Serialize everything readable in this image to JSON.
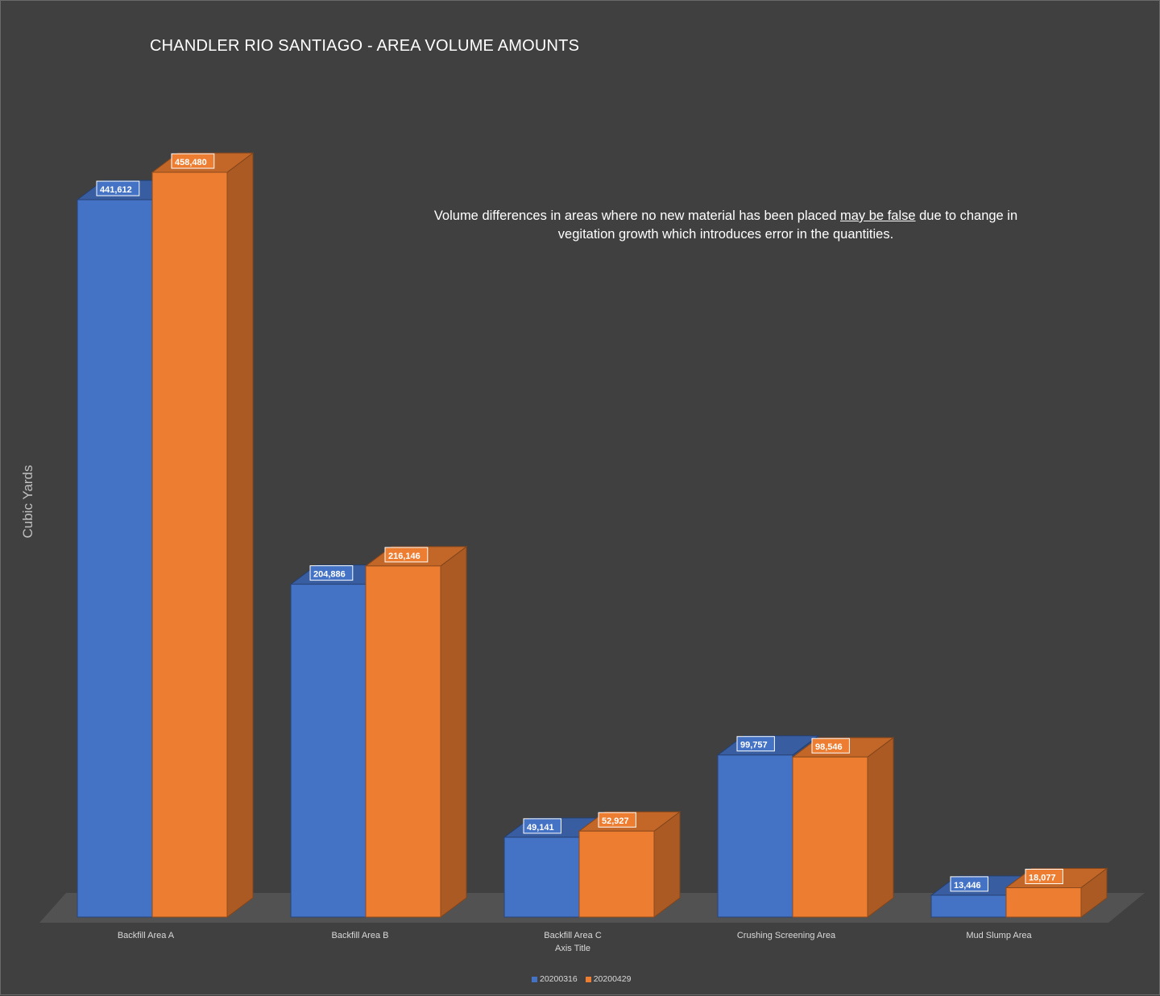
{
  "chart_data": {
    "type": "bar",
    "title": "CHANDLER RIO SANTIAGO - AREA VOLUME AMOUNTS",
    "xlabel": "Axis Title",
    "ylabel": "Cubic Yards",
    "categories": [
      "Backfill Area A",
      "Backfill Area B",
      "Backfill Area C",
      "Crushing Screening Area",
      "Mud Slump Area"
    ],
    "series": [
      {
        "name": "20200316",
        "color": "#4472c4",
        "values": [
          441612,
          204886,
          49141,
          99757,
          13446
        ]
      },
      {
        "name": "20200429",
        "color": "#ed7d31",
        "values": [
          458480,
          216146,
          52927,
          98546,
          18077
        ]
      }
    ],
    "data_labels": [
      [
        "441,612",
        "204,886",
        "49,141",
        "99,757",
        "13,446"
      ],
      [
        "458,480",
        "216,146",
        "52,927",
        "98,546",
        "18,077"
      ]
    ],
    "grid": false,
    "legend_position": "bottom",
    "style": "3d-clustered-column"
  },
  "annotation": {
    "before": "Volume differences in areas where no new material has been placed ",
    "underlined": "may be false",
    "after": " due to change in vegitation growth which introduces error in the quantities."
  }
}
